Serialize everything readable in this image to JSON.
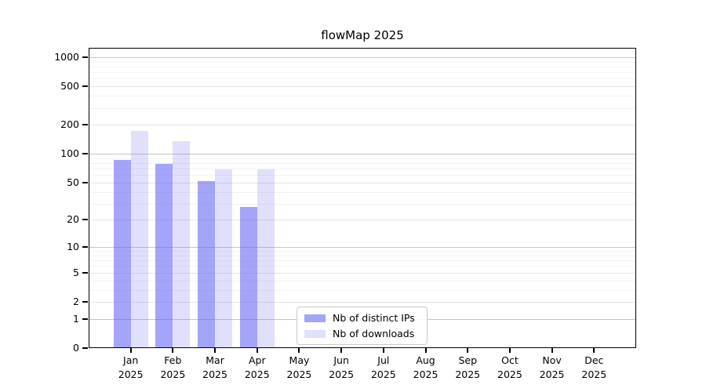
{
  "page": {
    "background": "#ffffff"
  },
  "chart_data": {
    "type": "bar",
    "title": "flowMap 2025",
    "x": {
      "categories": [
        "Jan",
        "Feb",
        "Mar",
        "Apr",
        "May",
        "Jun",
        "Jul",
        "Aug",
        "Sep",
        "Oct",
        "Nov",
        "Dec"
      ],
      "year": "2025"
    },
    "series": [
      {
        "name": "Nb of distinct IPs",
        "color": "rgba(99,99,245,0.58)",
        "values": [
          85,
          77,
          51,
          27,
          0,
          0,
          0,
          0,
          0,
          0,
          0,
          0
        ]
      },
      {
        "name": "Nb of downloads",
        "color": "rgba(99,99,245,0.20)",
        "values": [
          170,
          133,
          68,
          68,
          0,
          0,
          0,
          0,
          0,
          0,
          0,
          0
        ]
      }
    ],
    "y_axis": {
      "scale": "log1p",
      "ticks": [
        0,
        1,
        2,
        5,
        10,
        20,
        50,
        100,
        200,
        500,
        1000
      ],
      "max": 1250
    },
    "grid": {
      "on": true,
      "decades": [
        1,
        10,
        100,
        1000
      ],
      "minor_values": [
        3,
        4,
        6,
        7,
        8,
        9,
        30,
        40,
        60,
        70,
        80,
        90,
        300,
        400,
        600,
        700,
        800,
        900
      ],
      "decade_color": "#c6c6c6",
      "tick_color": "#e4e4e4",
      "minor_color": "#f2f2f2"
    },
    "legend": {
      "position": "bottom-center-inside"
    }
  }
}
